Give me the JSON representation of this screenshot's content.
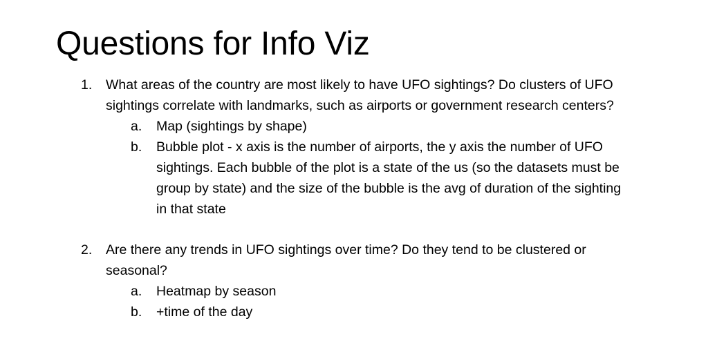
{
  "title": "Questions for Info Viz",
  "questions": [
    {
      "number": "1.",
      "lines": [
        "What areas of the country are most likely to have UFO sightings? Do clusters of UFO",
        "sightings correlate with landmarks, such as airports or government research centers?"
      ],
      "items": [
        {
          "letter": "a.",
          "lines": [
            "Map (sightings by shape)"
          ]
        },
        {
          "letter": "b.",
          "lines": [
            "Bubble plot -  x axis is the number of airports, the y axis the number of UFO",
            "sightings. Each bubble of the plot is a state of the us (so the datasets must be",
            "group by state) and the size of the bubble is the avg of duration of the sighting",
            "in that state"
          ]
        }
      ]
    },
    {
      "number": "2.",
      "lines": [
        "Are there any trends in UFO sightings over time? Do they tend to be clustered or",
        "seasonal?"
      ],
      "items": [
        {
          "letter": "a.",
          "lines": [
            "Heatmap by season"
          ]
        },
        {
          "letter": "b.",
          "lines": [
            "+time of the day"
          ]
        }
      ]
    }
  ]
}
